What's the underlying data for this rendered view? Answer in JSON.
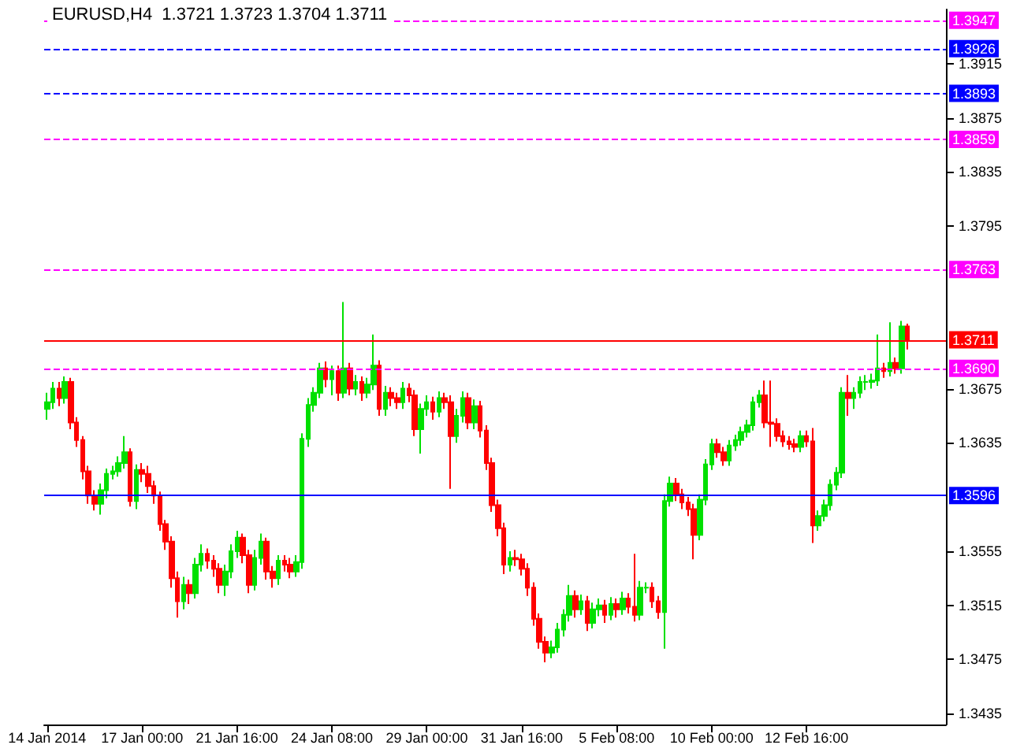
{
  "chart_data": {
    "type": "candlestick",
    "title": "EURUSD,H4  1.3721 1.3723 1.3704 1.3711",
    "categories": [
      "14 Jan 2014",
      null,
      null,
      null,
      null,
      null,
      null,
      null,
      null,
      null,
      null,
      null,
      null,
      null,
      null,
      null,
      "17 Jan 00:00",
      null,
      null,
      null,
      null,
      null,
      null,
      null,
      null,
      null,
      null,
      null,
      null,
      null,
      null,
      null,
      "21 Jan 16:00",
      null,
      null,
      null,
      null,
      null,
      null,
      null,
      null,
      null,
      null,
      null,
      null,
      null,
      null,
      null,
      "24 Jan 08:00",
      null,
      null,
      null,
      null,
      null,
      null,
      null,
      null,
      null,
      null,
      null,
      null,
      null,
      null,
      null,
      "29 Jan 00:00",
      null,
      null,
      null,
      null,
      null,
      null,
      null,
      null,
      null,
      null,
      null,
      null,
      null,
      null,
      null,
      "31 Jan 16:00",
      null,
      null,
      null,
      null,
      null,
      null,
      null,
      null,
      null,
      null,
      null,
      null,
      null,
      null,
      null,
      "5 Feb 08:00",
      null,
      null,
      null,
      null,
      null,
      null,
      null,
      null,
      null,
      null,
      null,
      null,
      null,
      null,
      null,
      "10 Feb 00:00",
      null,
      null,
      null,
      null,
      null,
      null,
      null,
      null,
      null,
      null,
      null,
      null,
      null,
      null,
      null,
      "12 Feb 16:00",
      null,
      null,
      null,
      null,
      null,
      null,
      null,
      null,
      null,
      null,
      null,
      null,
      null,
      null,
      null,
      null,
      null,
      null,
      null,
      null,
      null,
      null,
      null
    ],
    "ohlc": [
      [
        1.366,
        1.3672,
        1.3652,
        1.3665
      ],
      [
        1.3665,
        1.368,
        1.366,
        1.3675
      ],
      [
        1.3675,
        1.368,
        1.3662,
        1.3668
      ],
      [
        1.3668,
        1.3684,
        1.3664,
        1.368
      ],
      [
        1.368,
        1.3683,
        1.3645,
        1.365
      ],
      [
        1.365,
        1.3654,
        1.3632,
        1.3637
      ],
      [
        1.3637,
        1.364,
        1.3608,
        1.3614
      ],
      [
        1.3614,
        1.3618,
        1.359,
        1.3596
      ],
      [
        1.3596,
        1.36,
        1.3585,
        1.359
      ],
      [
        1.359,
        1.3605,
        1.3582,
        1.36
      ],
      [
        1.36,
        1.3616,
        1.3594,
        1.3612
      ],
      [
        1.3612,
        1.3618,
        1.3608,
        1.3614
      ],
      [
        1.3614,
        1.3625,
        1.361,
        1.362
      ],
      [
        1.362,
        1.364,
        1.3616,
        1.3628
      ],
      [
        1.3628,
        1.3631,
        1.3588,
        1.3592
      ],
      [
        1.3592,
        1.3619,
        1.3586,
        1.3615
      ],
      [
        1.3615,
        1.362,
        1.3606,
        1.3612
      ],
      [
        1.3612,
        1.3618,
        1.3598,
        1.3603
      ],
      [
        1.3603,
        1.3607,
        1.359,
        1.3596
      ],
      [
        1.3596,
        1.3599,
        1.357,
        1.3575
      ],
      [
        1.3575,
        1.3578,
        1.3556,
        1.3562
      ],
      [
        1.3562,
        1.3566,
        1.3528,
        1.3535
      ],
      [
        1.3535,
        1.354,
        1.3506,
        1.3518
      ],
      [
        1.3518,
        1.3536,
        1.3512,
        1.353
      ],
      [
        1.353,
        1.3534,
        1.3516,
        1.3524
      ],
      [
        1.3524,
        1.355,
        1.352,
        1.3545
      ],
      [
        1.3545,
        1.356,
        1.354,
        1.3553
      ],
      [
        1.3553,
        1.3557,
        1.3542,
        1.3548
      ],
      [
        1.3548,
        1.3552,
        1.3536,
        1.3542
      ],
      [
        1.3542,
        1.3546,
        1.3524,
        1.353
      ],
      [
        1.353,
        1.3545,
        1.3522,
        1.354
      ],
      [
        1.354,
        1.356,
        1.3535,
        1.3555
      ],
      [
        1.3555,
        1.357,
        1.355,
        1.3565
      ],
      [
        1.3565,
        1.3568,
        1.3546,
        1.3552
      ],
      [
        1.3552,
        1.3556,
        1.3524,
        1.353
      ],
      [
        1.353,
        1.3556,
        1.3526,
        1.355
      ],
      [
        1.355,
        1.3568,
        1.3545,
        1.3562
      ],
      [
        1.3562,
        1.3565,
        1.3534,
        1.354
      ],
      [
        1.354,
        1.3544,
        1.3528,
        1.3535
      ],
      [
        1.3535,
        1.3552,
        1.353,
        1.3548
      ],
      [
        1.3548,
        1.3552,
        1.354,
        1.3545
      ],
      [
        1.3545,
        1.355,
        1.3535,
        1.354
      ],
      [
        1.354,
        1.3552,
        1.3536,
        1.3547
      ],
      [
        1.3547,
        1.3642,
        1.3542,
        1.3638
      ],
      [
        1.3638,
        1.3668,
        1.3632,
        1.3663
      ],
      [
        1.3663,
        1.3676,
        1.3658,
        1.3672
      ],
      [
        1.3672,
        1.3694,
        1.3668,
        1.369
      ],
      [
        1.369,
        1.3695,
        1.3676,
        1.3682
      ],
      [
        1.3682,
        1.3692,
        1.367,
        1.3688
      ],
      [
        1.3688,
        1.3692,
        1.3666,
        1.3672
      ],
      [
        1.3672,
        1.3739,
        1.3668,
        1.369
      ],
      [
        1.369,
        1.3694,
        1.367,
        1.3675
      ],
      [
        1.3675,
        1.3685,
        1.367,
        1.368
      ],
      [
        1.368,
        1.3684,
        1.3666,
        1.3672
      ],
      [
        1.3672,
        1.3683,
        1.3668,
        1.3678
      ],
      [
        1.3678,
        1.3715,
        1.3674,
        1.3692
      ],
      [
        1.3692,
        1.3696,
        1.3655,
        1.366
      ],
      [
        1.366,
        1.3677,
        1.3655,
        1.3672
      ],
      [
        1.3672,
        1.3676,
        1.3662,
        1.3668
      ],
      [
        1.3668,
        1.3672,
        1.366,
        1.3665
      ],
      [
        1.3665,
        1.368,
        1.366,
        1.3675
      ],
      [
        1.3675,
        1.3679,
        1.3665,
        1.367
      ],
      [
        1.367,
        1.3674,
        1.364,
        1.3645
      ],
      [
        1.3645,
        1.3664,
        1.3627,
        1.366
      ],
      [
        1.366,
        1.367,
        1.3655,
        1.3665
      ],
      [
        1.3665,
        1.3669,
        1.3652,
        1.3658
      ],
      [
        1.3658,
        1.3673,
        1.3654,
        1.3668
      ],
      [
        1.3668,
        1.3672,
        1.366,
        1.3665
      ],
      [
        1.3665,
        1.367,
        1.3601,
        1.364
      ],
      [
        1.364,
        1.366,
        1.3635,
        1.3655
      ],
      [
        1.3655,
        1.3673,
        1.365,
        1.3668
      ],
      [
        1.3668,
        1.3672,
        1.3645,
        1.365
      ],
      [
        1.365,
        1.3667,
        1.3645,
        1.3662
      ],
      [
        1.3662,
        1.3666,
        1.3639,
        1.3644
      ],
      [
        1.3644,
        1.3648,
        1.3615,
        1.362
      ],
      [
        1.362,
        1.3624,
        1.3584,
        1.3589
      ],
      [
        1.3589,
        1.3593,
        1.3566,
        1.3572
      ],
      [
        1.3572,
        1.3576,
        1.3538,
        1.3545
      ],
      [
        1.3545,
        1.3555,
        1.354,
        1.355
      ],
      [
        1.355,
        1.3556,
        1.3544,
        1.3549
      ],
      [
        1.3549,
        1.3553,
        1.3537,
        1.3542
      ],
      [
        1.3542,
        1.3546,
        1.3522,
        1.3528
      ],
      [
        1.3528,
        1.3532,
        1.35,
        1.3505
      ],
      [
        1.3505,
        1.3509,
        1.3483,
        1.3488
      ],
      [
        1.3488,
        1.3492,
        1.3473,
        1.348
      ],
      [
        1.348,
        1.3489,
        1.3476,
        1.3484
      ],
      [
        1.3484,
        1.3502,
        1.348,
        1.3497
      ],
      [
        1.3497,
        1.3512,
        1.3492,
        1.3508
      ],
      [
        1.3508,
        1.353,
        1.3503,
        1.3522
      ],
      [
        1.3522,
        1.3526,
        1.3506,
        1.3512
      ],
      [
        1.3512,
        1.3523,
        1.3508,
        1.3518
      ],
      [
        1.3518,
        1.3522,
        1.3496,
        1.3502
      ],
      [
        1.3502,
        1.3517,
        1.3498,
        1.3512
      ],
      [
        1.3512,
        1.352,
        1.3507,
        1.3515
      ],
      [
        1.3515,
        1.3519,
        1.3502,
        1.3508
      ],
      [
        1.3508,
        1.3521,
        1.3504,
        1.3516
      ],
      [
        1.3516,
        1.352,
        1.3506,
        1.3512
      ],
      [
        1.3512,
        1.3525,
        1.3508,
        1.352
      ],
      [
        1.352,
        1.3524,
        1.3509,
        1.3514
      ],
      [
        1.3514,
        1.3553,
        1.3503,
        1.3508
      ],
      [
        1.3508,
        1.3533,
        1.3504,
        1.3528
      ],
      [
        1.3528,
        1.3532,
        1.3524,
        1.3528
      ],
      [
        1.3528,
        1.3532,
        1.3513,
        1.3518
      ],
      [
        1.3518,
        1.3522,
        1.3505,
        1.351
      ],
      [
        1.351,
        1.3597,
        1.3483,
        1.3592
      ],
      [
        1.3592,
        1.361,
        1.3588,
        1.3605
      ],
      [
        1.3605,
        1.3609,
        1.3592,
        1.3597
      ],
      [
        1.3597,
        1.3601,
        1.3586,
        1.3591
      ],
      [
        1.3591,
        1.3595,
        1.3581,
        1.3586
      ],
      [
        1.3586,
        1.359,
        1.3549,
        1.3567
      ],
      [
        1.3567,
        1.3597,
        1.3563,
        1.3593
      ],
      [
        1.3593,
        1.3623,
        1.3589,
        1.3619
      ],
      [
        1.3619,
        1.3638,
        1.3615,
        1.3634
      ],
      [
        1.3634,
        1.3638,
        1.3624,
        1.3628
      ],
      [
        1.3628,
        1.3632,
        1.3618,
        1.3622
      ],
      [
        1.3622,
        1.3637,
        1.3618,
        1.3633
      ],
      [
        1.3633,
        1.3641,
        1.3629,
        1.3637
      ],
      [
        1.3637,
        1.3647,
        1.3633,
        1.3643
      ],
      [
        1.3643,
        1.3652,
        1.3639,
        1.3648
      ],
      [
        1.3648,
        1.3669,
        1.3644,
        1.3665
      ],
      [
        1.3665,
        1.3674,
        1.3661,
        1.367
      ],
      [
        1.367,
        1.3681,
        1.3646,
        1.365
      ],
      [
        1.365,
        1.3681,
        1.3632,
        1.3649
      ],
      [
        1.3649,
        1.3653,
        1.3636,
        1.364
      ],
      [
        1.364,
        1.3644,
        1.3632,
        1.3636
      ],
      [
        1.3636,
        1.364,
        1.363,
        1.3634
      ],
      [
        1.3634,
        1.3638,
        1.3628,
        1.3632
      ],
      [
        1.3632,
        1.3644,
        1.3628,
        1.364
      ],
      [
        1.364,
        1.3644,
        1.3632,
        1.3636
      ],
      [
        1.3636,
        1.3646,
        1.3561,
        1.3574
      ],
      [
        1.3574,
        1.3585,
        1.357,
        1.3581
      ],
      [
        1.3581,
        1.3593,
        1.3577,
        1.3589
      ],
      [
        1.3589,
        1.3608,
        1.3585,
        1.3604
      ],
      [
        1.3604,
        1.3617,
        1.36,
        1.3613
      ],
      [
        1.3613,
        1.3676,
        1.3609,
        1.3672
      ],
      [
        1.3672,
        1.3685,
        1.3655,
        1.3668
      ],
      [
        1.3668,
        1.3676,
        1.366,
        1.3672
      ],
      [
        1.3672,
        1.3684,
        1.3668,
        1.368
      ],
      [
        1.368,
        1.3685,
        1.3674,
        1.368
      ],
      [
        1.368,
        1.3686,
        1.3675,
        1.3681
      ],
      [
        1.3681,
        1.3715,
        1.3677,
        1.369
      ],
      [
        1.369,
        1.3694,
        1.3683,
        1.3688
      ],
      [
        1.3688,
        1.3724,
        1.3684,
        1.3694
      ],
      [
        1.3694,
        1.3698,
        1.3686,
        1.369
      ],
      [
        1.369,
        1.3725,
        1.3686,
        1.3721
      ],
      [
        1.3721,
        1.3723,
        1.3704,
        1.3711
      ],
      null,
      null,
      null,
      null,
      null,
      null
    ],
    "ylim": [
      1.3427,
      1.3955
    ],
    "yticks": [
      1.3435,
      1.3475,
      1.3515,
      1.3555,
      1.3635,
      1.3675,
      1.3795,
      1.3835,
      1.3875,
      1.3915
    ],
    "ref_lines": [
      {
        "axis": "y",
        "value": 1.3947,
        "label": "1.3947",
        "color": "#ff00ff",
        "line_style": "dashed"
      },
      {
        "axis": "y",
        "value": 1.3926,
        "label": "1.3926",
        "color": "#0000ff",
        "line_style": "dashed"
      },
      {
        "axis": "y",
        "value": 1.3893,
        "label": "1.3893",
        "color": "#0000ff",
        "line_style": "dashed"
      },
      {
        "axis": "y",
        "value": 1.3859,
        "label": "1.3859",
        "color": "#ff00ff",
        "line_style": "dashed"
      },
      {
        "axis": "y",
        "value": 1.3763,
        "label": "1.3763",
        "color": "#ff00ff",
        "line_style": "dashed"
      },
      {
        "axis": "y",
        "value": 1.3711,
        "label": "1.3711",
        "color": "#ff0000",
        "line_style": "solid"
      },
      {
        "axis": "y",
        "value": 1.369,
        "label": "1.3690",
        "color": "#ff00ff",
        "line_style": "dashed"
      },
      {
        "axis": "y",
        "value": 1.3596,
        "label": "1.3596",
        "color": "#0000ff",
        "line_style": "solid"
      }
    ],
    "tick_labels": true
  }
}
